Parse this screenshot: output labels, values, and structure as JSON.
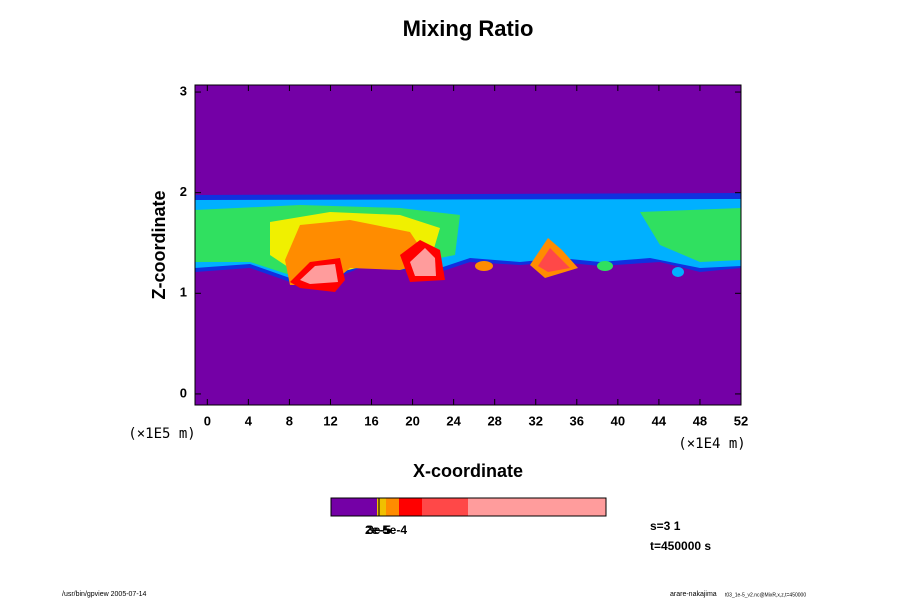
{
  "chart_data": {
    "type": "contour",
    "title": "Mixing Ratio",
    "x_label": "X-coordinate",
    "y_label": "Z-coordinate",
    "x_unit": "(×1E4 m)",
    "y_unit": "(×1E5 m)",
    "xlim": [
      -1.2,
      52
    ],
    "xticks": [
      0,
      4,
      8,
      12,
      16,
      20,
      24,
      28,
      32,
      36,
      40,
      44,
      48,
      52
    ],
    "ylim": [
      -0.11,
      3.07
    ],
    "yticks": [
      0,
      1,
      2,
      3
    ],
    "background_color": "#7400a6",
    "colorbar": {
      "colors": [
        "#7400a6",
        "#f0c000",
        "#ff8c00",
        "#ff0000",
        "#ff4848",
        "#ff9c9c"
      ],
      "labels": [
        "2e-5",
        "3e-5",
        "5e-4"
      ]
    },
    "annotations": [
      "s=3 1",
      "t=450000 s"
    ],
    "footer_left": "/usr/bin/gpview 2005-07-14",
    "footer_right": "arare-nakajima",
    "footer_right_small": "t03_1e-5_v2.nc@MixR,x,z,t=450000"
  }
}
